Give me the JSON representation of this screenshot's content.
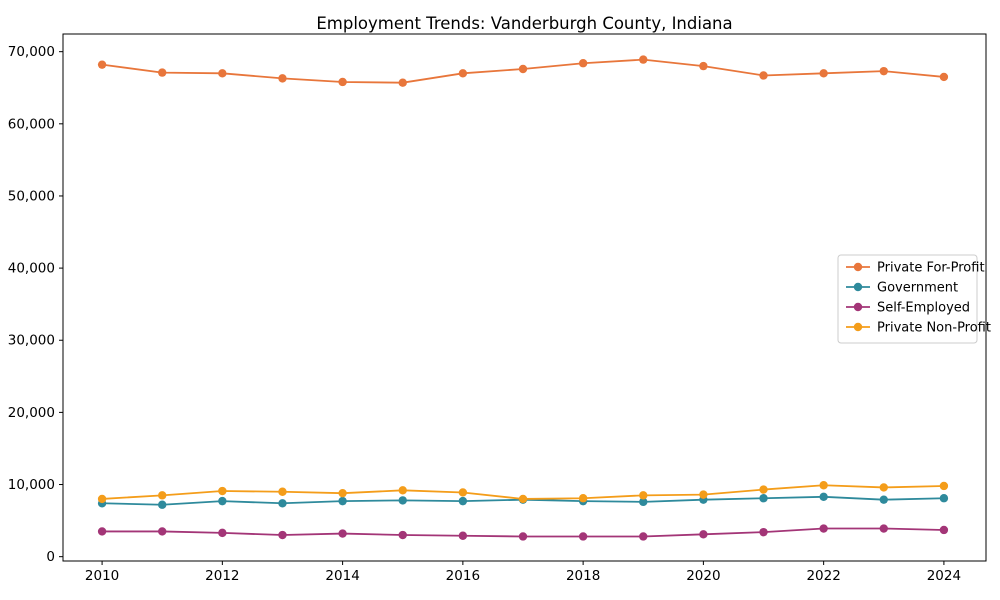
{
  "title": "Employment Trends: Vanderburgh County, Indiana",
  "chart_data": {
    "type": "line",
    "title": "Employment Trends: Vanderburgh County, Indiana",
    "xlabel": "",
    "ylabel": "",
    "x": [
      2010,
      2011,
      2012,
      2013,
      2014,
      2015,
      2016,
      2017,
      2018,
      2019,
      2020,
      2021,
      2022,
      2023,
      2024
    ],
    "series": [
      {
        "name": "Private For-Profit",
        "color": "#E8763B",
        "values": [
          68200,
          67100,
          67000,
          66300,
          65800,
          65700,
          67000,
          67600,
          68400,
          68900,
          68000,
          66700,
          67000,
          67300,
          66500
        ]
      },
      {
        "name": "Government",
        "color": "#2E8A9C",
        "values": [
          7400,
          7200,
          7700,
          7400,
          7700,
          7800,
          7700,
          7900,
          7700,
          7600,
          7900,
          8100,
          8300,
          7900,
          8100
        ]
      },
      {
        "name": "Self-Employed",
        "color": "#A33577",
        "values": [
          3500,
          3500,
          3300,
          3000,
          3200,
          3000,
          2900,
          2800,
          2800,
          2800,
          3100,
          3400,
          3900,
          3900,
          3700
        ]
      },
      {
        "name": "Private Non-Profit",
        "color": "#F49D1A",
        "values": [
          8000,
          8500,
          9100,
          9000,
          8800,
          9200,
          8900,
          8000,
          8100,
          8500,
          8600,
          9300,
          9900,
          9600,
          9800
        ]
      }
    ],
    "xticks": [
      2010,
      2012,
      2014,
      2016,
      2018,
      2020,
      2022,
      2024
    ],
    "yticks": [
      0,
      10000,
      20000,
      30000,
      40000,
      50000,
      60000,
      70000
    ],
    "xlim": [
      2009.35,
      2024.7
    ],
    "ylim": [
      -600,
      72450
    ],
    "grid": false,
    "legend_position": "center right",
    "marker": "circle",
    "axis_color": "#000000",
    "legend_border_color": "#cccccc",
    "legend_background": "#ffffff"
  }
}
